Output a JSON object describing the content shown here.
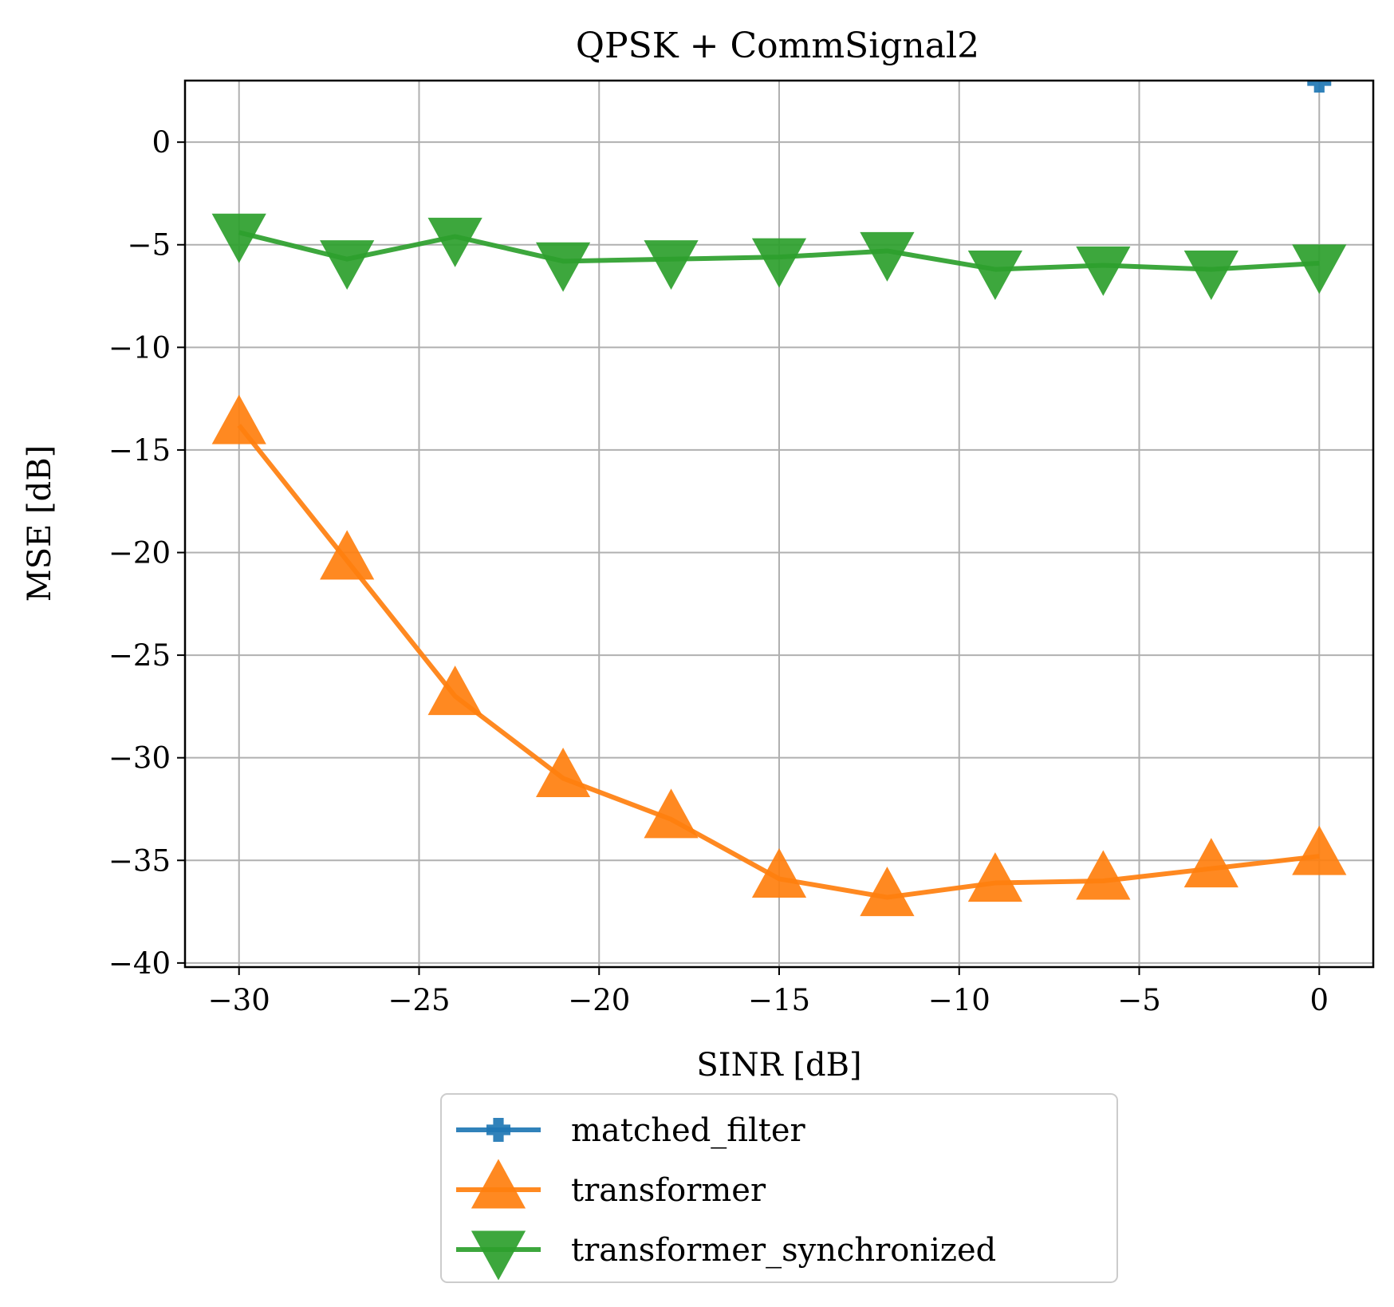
{
  "chart_data": {
    "type": "line",
    "title": "QPSK + CommSignal2",
    "xlabel": "SINR [dB]",
    "ylabel": "MSE [dB]",
    "xlim": [
      -31.5,
      1.5
    ],
    "ylim": [
      -40.2,
      3.0
    ],
    "x_ticks": [
      -30,
      -25,
      -20,
      -15,
      -10,
      -5,
      0
    ],
    "x_tick_labels": [
      "−30",
      "−25",
      "−20",
      "−15",
      "−10",
      "−5",
      "0"
    ],
    "y_ticks": [
      0,
      -5,
      -10,
      -15,
      -20,
      -25,
      -30,
      -35,
      -40
    ],
    "y_tick_labels": [
      "0",
      "−5",
      "−10",
      "−15",
      "−20",
      "−25",
      "−30",
      "−35",
      "−40"
    ],
    "grid": true,
    "legend_position": "below",
    "series": [
      {
        "name": "matched_filter",
        "color": "#1f77b4",
        "marker": "plus",
        "x": [
          0
        ],
        "y": [
          3.0
        ]
      },
      {
        "name": "transformer",
        "color": "#ff7f0e",
        "marker": "triangle-up",
        "x": [
          -30,
          -27,
          -24,
          -21,
          -18,
          -15,
          -12,
          -9,
          -6,
          -3,
          0
        ],
        "y": [
          -13.8,
          -20.4,
          -27.0,
          -31.0,
          -33.0,
          -35.9,
          -36.8,
          -36.1,
          -36.0,
          -35.4,
          -34.8
        ]
      },
      {
        "name": "transformer_synchronized",
        "color": "#2ca02c",
        "marker": "triangle-down",
        "x": [
          -30,
          -27,
          -24,
          -21,
          -18,
          -15,
          -12,
          -9,
          -6,
          -3,
          0
        ],
        "y": [
          -4.4,
          -5.7,
          -4.6,
          -5.8,
          -5.7,
          -5.6,
          -5.3,
          -6.2,
          -6.0,
          -6.2,
          -5.9
        ]
      }
    ]
  }
}
